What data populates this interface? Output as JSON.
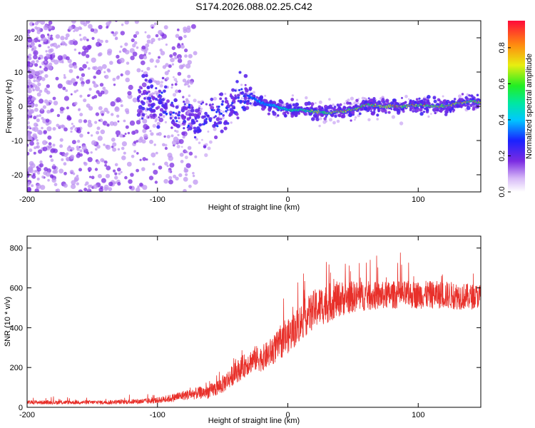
{
  "title": "S174.2026.088.02.25.C42",
  "colors": {
    "snr_line": "#e8302a",
    "frame": "#000000",
    "scatter_purple": "#7a2be0",
    "scatter_light": "#c9a6f0"
  },
  "chart_data": [
    {
      "type": "heatmap",
      "name": "spectrogram",
      "xlabel": "Height of straight line (km)",
      "ylabel": "Frequency (Hz)",
      "xlim": [
        -200,
        148
      ],
      "ylim": [
        -25,
        25
      ],
      "xticks": [
        -200,
        -100,
        0,
        100
      ],
      "xtick_labels": [
        "-200",
        "-100",
        "0",
        "100"
      ],
      "yticks": [
        -20,
        -10,
        0,
        10,
        20
      ],
      "ytick_labels": [
        "-20",
        "-10",
        "0",
        "10",
        "20"
      ],
      "ridge": {
        "x": [
          -110,
          -90,
          -70,
          -55,
          -45,
          -38,
          -30,
          -20,
          -10,
          0,
          10,
          20,
          30,
          40,
          50,
          60,
          70,
          80,
          90,
          100,
          110,
          120,
          130,
          140,
          148
        ],
        "y": [
          3,
          -1,
          -4,
          -3,
          0,
          3,
          3,
          1,
          0,
          -1,
          -1,
          -1.5,
          -2,
          -1.5,
          -1,
          0.5,
          0,
          0,
          0,
          0.5,
          0,
          0,
          1,
          1.5,
          1
        ]
      },
      "colorbar": {
        "label": "Normalized spectral amplitude",
        "range": [
          0,
          0.95
        ],
        "ticks": [
          0.0,
          0.2,
          0.4,
          0.6,
          0.8
        ],
        "tick_labels": [
          "0.0",
          "0.2",
          "0.4",
          "0.6",
          "0.8"
        ]
      }
    },
    {
      "type": "line",
      "name": "snr",
      "xlabel": "Height of straight line (km)",
      "ylabel": "SNR (10 * v/v)",
      "xlim": [
        -200,
        148
      ],
      "ylim": [
        0,
        860
      ],
      "xticks": [
        -200,
        -100,
        0,
        100
      ],
      "xtick_labels": [
        "-200",
        "-100",
        "0",
        "100"
      ],
      "yticks": [
        0,
        200,
        400,
        600,
        800
      ],
      "ytick_labels": [
        "0",
        "200",
        "400",
        "600",
        "800"
      ],
      "series": [
        {
          "name": "SNR",
          "x": [
            -200,
            -180,
            -160,
            -140,
            -120,
            -110,
            -100,
            -90,
            -80,
            -70,
            -60,
            -55,
            -50,
            -45,
            -40,
            -35,
            -30,
            -25,
            -20,
            -15,
            -10,
            -5,
            0,
            5,
            10,
            15,
            20,
            25,
            30,
            35,
            40,
            50,
            60,
            70,
            80,
            90,
            100,
            110,
            120,
            130,
            140,
            148
          ],
          "y": [
            25,
            25,
            25,
            25,
            28,
            30,
            35,
            45,
            60,
            70,
            80,
            95,
            115,
            145,
            175,
            200,
            225,
            245,
            245,
            265,
            295,
            325,
            355,
            390,
            430,
            460,
            490,
            510,
            520,
            535,
            545,
            555,
            560,
            560,
            565,
            565,
            565,
            565,
            565,
            560,
            555,
            560
          ],
          "spread": [
            10,
            10,
            10,
            10,
            12,
            15,
            15,
            20,
            25,
            30,
            35,
            40,
            45,
            50,
            55,
            60,
            60,
            65,
            65,
            70,
            75,
            80,
            85,
            90,
            95,
            95,
            100,
            100,
            100,
            95,
            90,
            80,
            75,
            70,
            70,
            70,
            70,
            70,
            70,
            70,
            65,
            60
          ]
        }
      ]
    }
  ]
}
